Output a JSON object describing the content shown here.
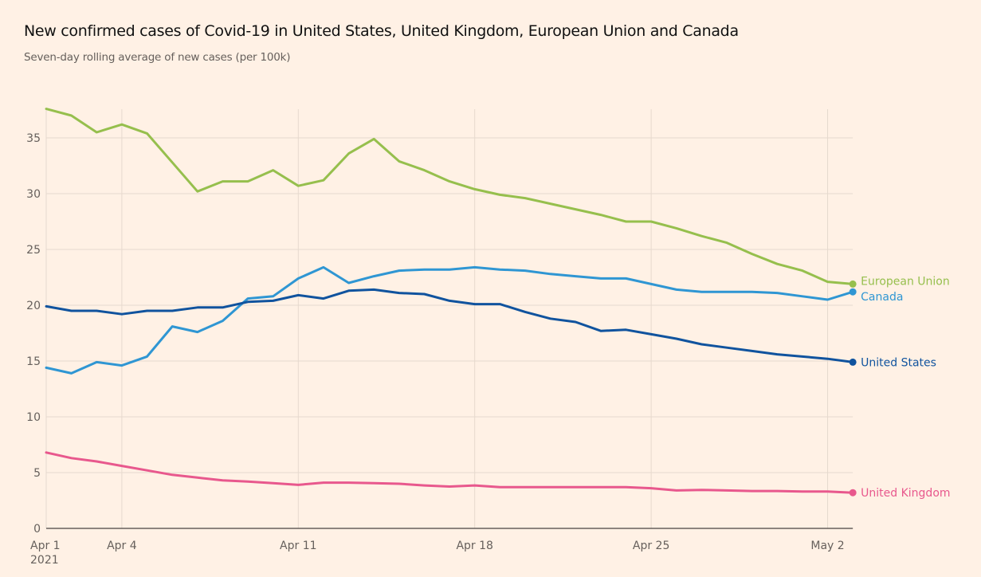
{
  "header": {
    "title": "New confirmed cases of Covid-19 in United States, United Kingdom, European Union and Canada",
    "subtitle": "Seven-day rolling average of new cases (per 100k)"
  },
  "chart_data": {
    "type": "line",
    "title": "New confirmed cases of Covid-19 in United States, United Kingdom, European Union and Canada",
    "subtitle": "Seven-day rolling average of new cases (per 100k)",
    "xlabel": "",
    "ylabel": "",
    "ylim": [
      0,
      37.7
    ],
    "yticks": [
      0,
      5,
      10,
      15,
      20,
      25,
      30,
      35
    ],
    "grid": true,
    "legend": "inline-right",
    "x_start": "2021-04-01",
    "x": [
      "Apr 1",
      "Apr 2",
      "Apr 3",
      "Apr 4",
      "Apr 5",
      "Apr 6",
      "Apr 7",
      "Apr 8",
      "Apr 9",
      "Apr 10",
      "Apr 11",
      "Apr 12",
      "Apr 13",
      "Apr 14",
      "Apr 15",
      "Apr 16",
      "Apr 17",
      "Apr 18",
      "Apr 19",
      "Apr 20",
      "Apr 21",
      "Apr 22",
      "Apr 23",
      "Apr 24",
      "Apr 25",
      "Apr 26",
      "Apr 27",
      "Apr 28",
      "Apr 29",
      "Apr 30",
      "May 1",
      "May 2",
      "May 3"
    ],
    "xticks": [
      {
        "index": 0,
        "label": "Apr 1",
        "sublabel": "2021"
      },
      {
        "index": 3,
        "label": "Apr 4",
        "sublabel": ""
      },
      {
        "index": 10,
        "label": "Apr 11",
        "sublabel": ""
      },
      {
        "index": 17,
        "label": "Apr 18",
        "sublabel": ""
      },
      {
        "index": 24,
        "label": "Apr 25",
        "sublabel": ""
      },
      {
        "index": 31,
        "label": "May 2",
        "sublabel": ""
      }
    ],
    "series": [
      {
        "name": "European Union",
        "color": "#96bf4d",
        "values": [
          37.6,
          37.0,
          35.5,
          36.2,
          35.4,
          32.8,
          30.2,
          31.1,
          31.1,
          32.1,
          30.7,
          31.2,
          33.6,
          34.9,
          32.9,
          32.1,
          31.1,
          30.4,
          29.9,
          29.6,
          29.1,
          28.6,
          28.1,
          27.5,
          27.5,
          26.9,
          26.2,
          25.6,
          24.6,
          23.7,
          23.1,
          22.1,
          21.9
        ]
      },
      {
        "name": "Canada",
        "color": "#2f96d3",
        "values": [
          14.4,
          13.9,
          14.9,
          14.6,
          15.4,
          18.1,
          17.6,
          18.6,
          20.6,
          20.8,
          22.4,
          23.4,
          22.0,
          22.6,
          23.1,
          23.2,
          23.2,
          23.4,
          23.2,
          23.1,
          22.8,
          22.6,
          22.4,
          22.4,
          21.9,
          21.4,
          21.2,
          21.2,
          21.2,
          21.1,
          20.8,
          20.5,
          21.2
        ]
      },
      {
        "name": "United States",
        "color": "#10539e",
        "values": [
          19.9,
          19.5,
          19.5,
          19.2,
          19.5,
          19.5,
          19.8,
          19.8,
          20.3,
          20.4,
          20.9,
          20.6,
          21.3,
          21.4,
          21.1,
          21.0,
          20.4,
          20.1,
          20.1,
          19.4,
          18.8,
          18.5,
          17.7,
          17.8,
          17.4,
          17.0,
          16.5,
          16.2,
          15.9,
          15.6,
          15.4,
          15.2,
          14.9
        ]
      },
      {
        "name": "United Kingdom",
        "color": "#e8588d",
        "values": [
          6.8,
          6.3,
          6.0,
          5.6,
          5.2,
          4.8,
          4.55,
          4.3,
          4.2,
          4.05,
          3.9,
          4.1,
          4.1,
          4.05,
          4.0,
          3.85,
          3.75,
          3.85,
          3.7,
          3.7,
          3.7,
          3.7,
          3.7,
          3.7,
          3.6,
          3.4,
          3.45,
          3.4,
          3.35,
          3.35,
          3.3,
          3.3,
          3.2
        ]
      }
    ]
  },
  "colors": {
    "background": "#fff1e5",
    "grid": "#e6d9ce",
    "axis": "#66605c",
    "tick_text": "#66605c"
  }
}
